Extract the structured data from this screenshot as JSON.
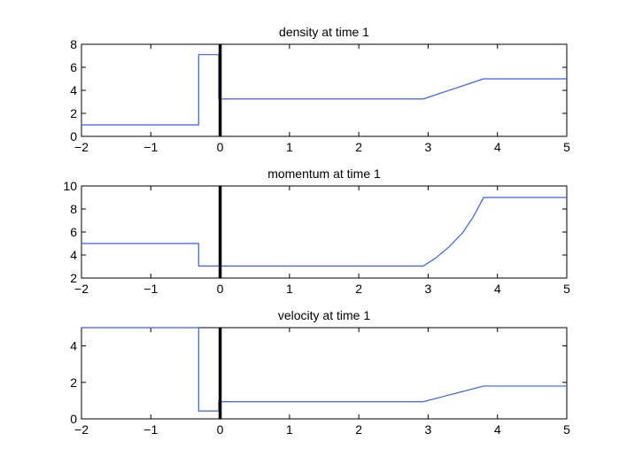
{
  "chart_data": [
    {
      "type": "line",
      "title": "density at time 1",
      "xlabel": "",
      "ylabel": "",
      "xlim": [
        -2,
        5
      ],
      "ylim": [
        0,
        8
      ],
      "xticks": [
        "−2",
        "−1",
        "0",
        "1",
        "2",
        "3",
        "4",
        "5"
      ],
      "yticks": [
        "0",
        "2",
        "4",
        "6",
        "8"
      ],
      "grid": false,
      "series": [
        {
          "color": "#3c5ef2",
          "x": [
            -2,
            -0.31,
            -0.31,
            -0.02,
            -0.02,
            2.93,
            3.8,
            5
          ],
          "y": [
            1.0,
            1.0,
            7.1,
            7.1,
            3.25,
            3.25,
            5.0,
            5.0
          ]
        }
      ],
      "vline": {
        "x": 0,
        "color": "#000000"
      }
    },
    {
      "type": "line",
      "title": "momentum at time 1",
      "xlabel": "",
      "ylabel": "",
      "xlim": [
        -2,
        5
      ],
      "ylim": [
        2,
        10
      ],
      "xticks": [
        "−2",
        "−1",
        "0",
        "1",
        "2",
        "3",
        "4",
        "5"
      ],
      "yticks": [
        "2",
        "4",
        "6",
        "8",
        "10"
      ],
      "grid": false,
      "series": [
        {
          "color": "#3c5ef2",
          "x": [
            -2,
            -0.31,
            -0.31,
            2.93,
            3.1,
            3.3,
            3.5,
            3.65,
            3.8,
            5
          ],
          "y": [
            5.0,
            5.0,
            3.05,
            3.05,
            3.7,
            4.7,
            5.95,
            7.3,
            9.0,
            9.0
          ]
        }
      ],
      "vline": {
        "x": 0,
        "color": "#000000"
      }
    },
    {
      "type": "line",
      "title": "velocity at time 1",
      "xlabel": "",
      "ylabel": "",
      "xlim": [
        -2,
        5
      ],
      "ylim": [
        0,
        5
      ],
      "xticks": [
        "−2",
        "−1",
        "0",
        "1",
        "2",
        "3",
        "4",
        "5"
      ],
      "yticks": [
        "0",
        "2",
        "4"
      ],
      "grid": false,
      "series": [
        {
          "color": "#3c5ef2",
          "x": [
            -2,
            -0.31,
            -0.31,
            -0.02,
            -0.02,
            2.93,
            3.8,
            5
          ],
          "y": [
            5.0,
            5.0,
            0.43,
            0.43,
            0.94,
            0.94,
            1.8,
            1.8
          ]
        }
      ],
      "vline": {
        "x": 0,
        "color": "#000000"
      }
    }
  ]
}
